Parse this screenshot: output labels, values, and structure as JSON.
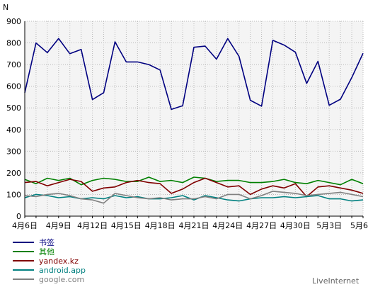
{
  "chart_data": {
    "type": "line",
    "ylabel": "N",
    "ylim": [
      0,
      900
    ],
    "yticks": [
      0,
      100,
      200,
      300,
      400,
      500,
      600,
      700,
      800,
      900
    ],
    "grid": true,
    "legend_position": "bottom-left",
    "x": [
      "4月6日",
      "4月7日",
      "4月8日",
      "4月9日",
      "4月10日",
      "4月11日",
      "4月12日",
      "4月13日",
      "4月14日",
      "4月15日",
      "4月16日",
      "4月17日",
      "4月18日",
      "4月19日",
      "4月20日",
      "4月21日",
      "4月22日",
      "4月23日",
      "4月24日",
      "4月25日",
      "4月26日",
      "4月27日",
      "4月28日",
      "4月29日",
      "4月30日",
      "5月1日",
      "5月2日",
      "5月3日",
      "5月4日",
      "5月5日",
      "5月6日"
    ],
    "x_tick_labels": [
      "4月6日",
      "4月9日",
      "4月12日",
      "4月15日",
      "4月18日",
      "4月21日",
      "4月24日",
      "4月27日",
      "4月30日",
      "5月3日",
      "5月6日"
    ],
    "x_tick_every": 3,
    "series": [
      {
        "name": "书签",
        "color": "#000080",
        "values": [
          570,
          800,
          755,
          820,
          750,
          770,
          538,
          570,
          805,
          712,
          712,
          700,
          675,
          493,
          510,
          780,
          785,
          725,
          820,
          738,
          535,
          508,
          812,
          790,
          757,
          613,
          715,
          512,
          540,
          640,
          752
        ]
      },
      {
        "name": "其他",
        "color": "#008000",
        "values": [
          170,
          150,
          175,
          165,
          175,
          145,
          165,
          175,
          170,
          160,
          160,
          180,
          160,
          165,
          155,
          180,
          175,
          160,
          165,
          165,
          155,
          155,
          160,
          170,
          155,
          150,
          165,
          155,
          145,
          170,
          150
        ]
      },
      {
        "name": "yandex.kz",
        "color": "#800000",
        "values": [
          155,
          160,
          140,
          155,
          170,
          160,
          115,
          130,
          135,
          155,
          165,
          155,
          150,
          105,
          125,
          155,
          175,
          155,
          135,
          140,
          100,
          125,
          140,
          130,
          150,
          90,
          135,
          140,
          130,
          120,
          105
        ]
      },
      {
        "name": "android.app",
        "color": "#008080",
        "values": [
          85,
          100,
          95,
          85,
          90,
          80,
          85,
          80,
          95,
          85,
          90,
          80,
          80,
          85,
          95,
          75,
          95,
          85,
          75,
          70,
          80,
          85,
          85,
          90,
          85,
          90,
          95,
          80,
          80,
          70,
          75
        ]
      },
      {
        "name": "google.com",
        "color": "#808080",
        "values": [
          95,
          90,
          100,
          105,
          95,
          80,
          75,
          60,
          105,
          95,
          85,
          80,
          85,
          75,
          80,
          80,
          90,
          80,
          100,
          100,
          80,
          95,
          115,
          110,
          105,
          95,
          100,
          105,
          110,
          100,
          90
        ]
      }
    ]
  },
  "branding": {
    "text": "LiveInternet"
  }
}
